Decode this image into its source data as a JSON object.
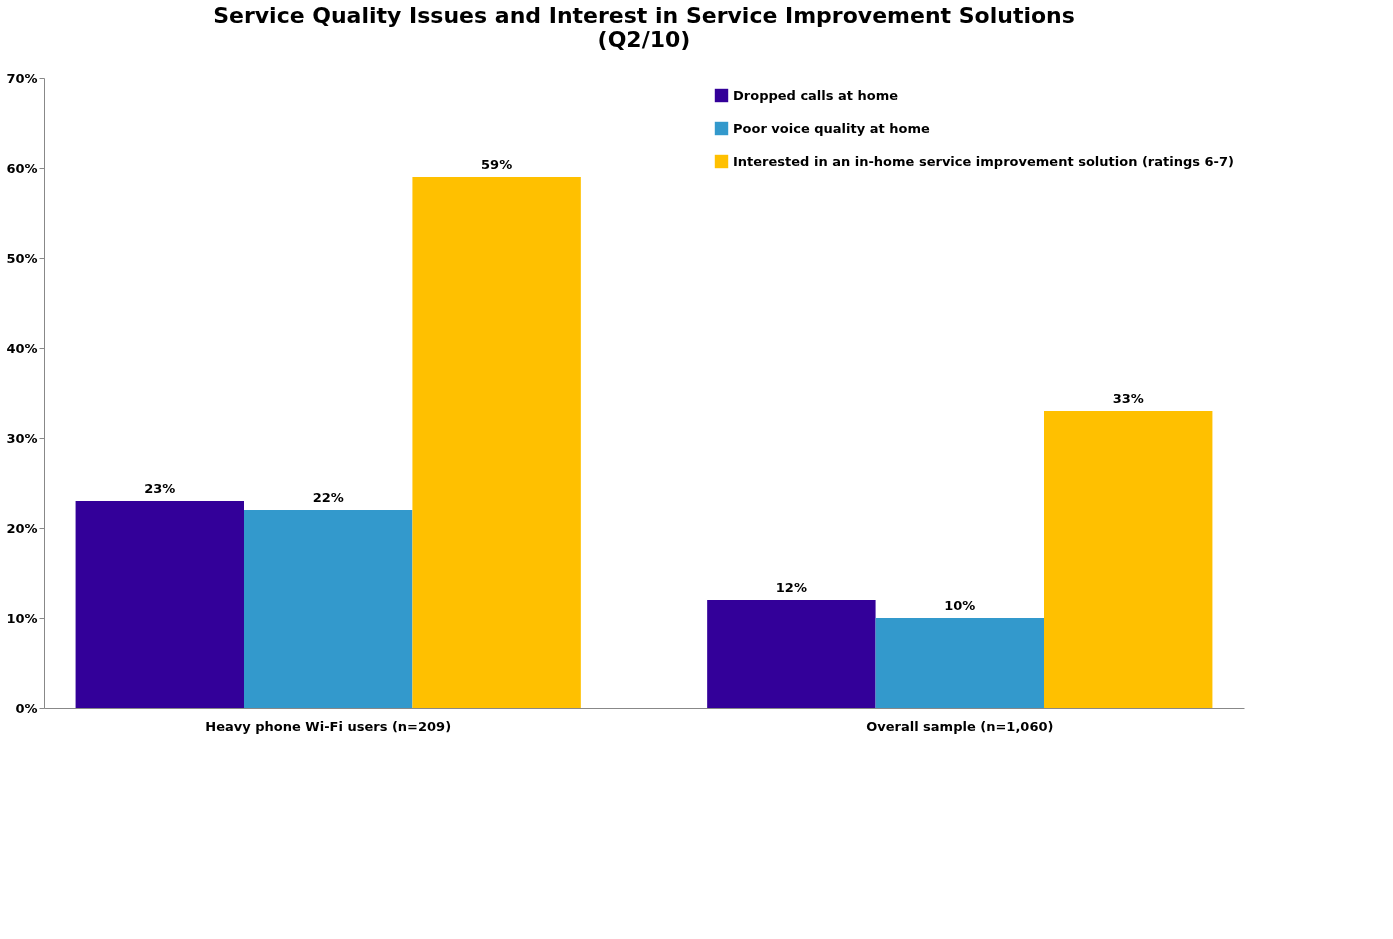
{
  "chart_data": {
    "type": "bar",
    "title": "Service Quality Issues and Interest in Service Improvement Solutions (Q2/10)",
    "categories": [
      "Heavy phone Wi-Fi users (n=209)",
      "Overall sample (n=1,060)"
    ],
    "series": [
      {
        "name": "Dropped calls at home",
        "color": "#330099",
        "values": [
          23,
          12
        ],
        "value_labels": [
          "23%",
          "12%"
        ]
      },
      {
        "name": "Poor voice quality at home",
        "color": "#3399cc",
        "values": [
          22,
          10
        ],
        "value_labels": [
          "22%",
          "10%"
        ]
      },
      {
        "name": "Interested in an in-home service improvement solution (ratings 6-7)",
        "color": "#ffc000",
        "values": [
          59,
          33
        ],
        "value_labels": [
          "59%",
          "33%"
        ]
      }
    ],
    "ylim": [
      0,
      70
    ],
    "yticks": [
      {
        "value": 0,
        "label": "0%"
      },
      {
        "value": 10,
        "label": "10%"
      },
      {
        "value": 20,
        "label": "20%"
      },
      {
        "value": 30,
        "label": "30%"
      },
      {
        "value": 40,
        "label": "40%"
      },
      {
        "value": 50,
        "label": "50%"
      },
      {
        "value": 60,
        "label": "60%"
      },
      {
        "value": 70,
        "label": "70%"
      }
    ],
    "grid": false,
    "legend": "top right"
  }
}
